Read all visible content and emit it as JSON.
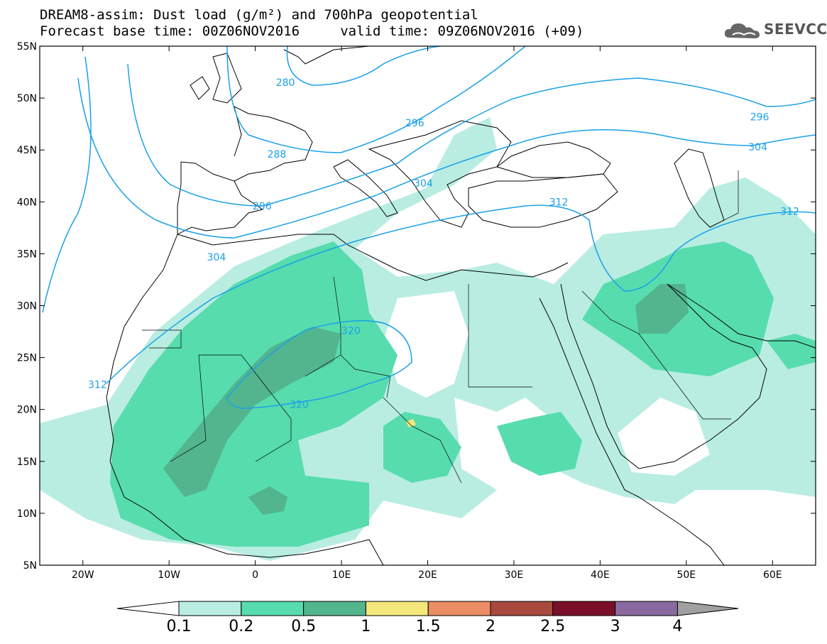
{
  "title": {
    "line1": "DREAM8-assim: Dust load (g/m²) and 700hPa geopotential",
    "line2": "Forecast base time: 00Z06NOV2016     valid time: 09Z06NOV2016 (+09)"
  },
  "logo": {
    "text": "SEEVCCC",
    "icon": "cloud-icon"
  },
  "map": {
    "lon_range": [
      -25,
      65
    ],
    "lat_range": [
      5,
      55
    ],
    "lon_ticks": [
      {
        "value": -20,
        "label": "20W"
      },
      {
        "value": -10,
        "label": "10W"
      },
      {
        "value": 0,
        "label": "0"
      },
      {
        "value": 10,
        "label": "10E"
      },
      {
        "value": 20,
        "label": "20E"
      },
      {
        "value": 30,
        "label": "30E"
      },
      {
        "value": 40,
        "label": "40E"
      },
      {
        "value": 50,
        "label": "50E"
      },
      {
        "value": 60,
        "label": "60E"
      }
    ],
    "lat_ticks": [
      {
        "value": 55,
        "label": "55N"
      },
      {
        "value": 50,
        "label": "50N"
      },
      {
        "value": 45,
        "label": "45N"
      },
      {
        "value": 40,
        "label": "40N"
      },
      {
        "value": 35,
        "label": "35N"
      },
      {
        "value": 30,
        "label": "30N"
      },
      {
        "value": 25,
        "label": "25N"
      },
      {
        "value": 20,
        "label": "20N"
      },
      {
        "value": 15,
        "label": "15N"
      },
      {
        "value": 10,
        "label": "10N"
      },
      {
        "value": 5,
        "label": "5N"
      }
    ],
    "contour_labels": [
      {
        "text": "280",
        "lon": 3.5,
        "lat": 51.5
      },
      {
        "text": "288",
        "lon": 2.5,
        "lat": 44.6
      },
      {
        "text": "296",
        "lon": 0.8,
        "lat": 39.6
      },
      {
        "text": "296",
        "lon": 18.5,
        "lat": 47.6
      },
      {
        "text": "296",
        "lon": 58.5,
        "lat": 48.2
      },
      {
        "text": "304",
        "lon": -4.5,
        "lat": 34.7
      },
      {
        "text": "304",
        "lon": 19.5,
        "lat": 41.8
      },
      {
        "text": "304",
        "lon": 58.3,
        "lat": 45.3
      },
      {
        "text": "312",
        "lon": -18.3,
        "lat": 22.4
      },
      {
        "text": "312",
        "lon": 35.2,
        "lat": 40.0
      },
      {
        "text": "312",
        "lon": 62.0,
        "lat": 39.1
      },
      {
        "text": "320",
        "lon": 11.1,
        "lat": 27.6
      },
      {
        "text": "320",
        "lon": 5.1,
        "lat": 20.5
      }
    ]
  },
  "colorbar": {
    "labels": [
      "0.1",
      "0.2",
      "0.5",
      "1",
      "1.5",
      "2",
      "2.5",
      "3",
      "4"
    ],
    "colors": [
      "#ffffff",
      "#b9ede2",
      "#57dcae",
      "#52b58e",
      "#f4e77b",
      "#ea8c64",
      "#a84a3e",
      "#7a0f2a",
      "#8a6a9e",
      "#a0a0a0"
    ]
  },
  "colors": {
    "contour": "#1aa0e8",
    "coast": "#000000",
    "dust_1": "#b9ede2",
    "dust_2": "#57dcae",
    "dust_3": "#52b58e",
    "dust_4": "#f4e77b"
  }
}
